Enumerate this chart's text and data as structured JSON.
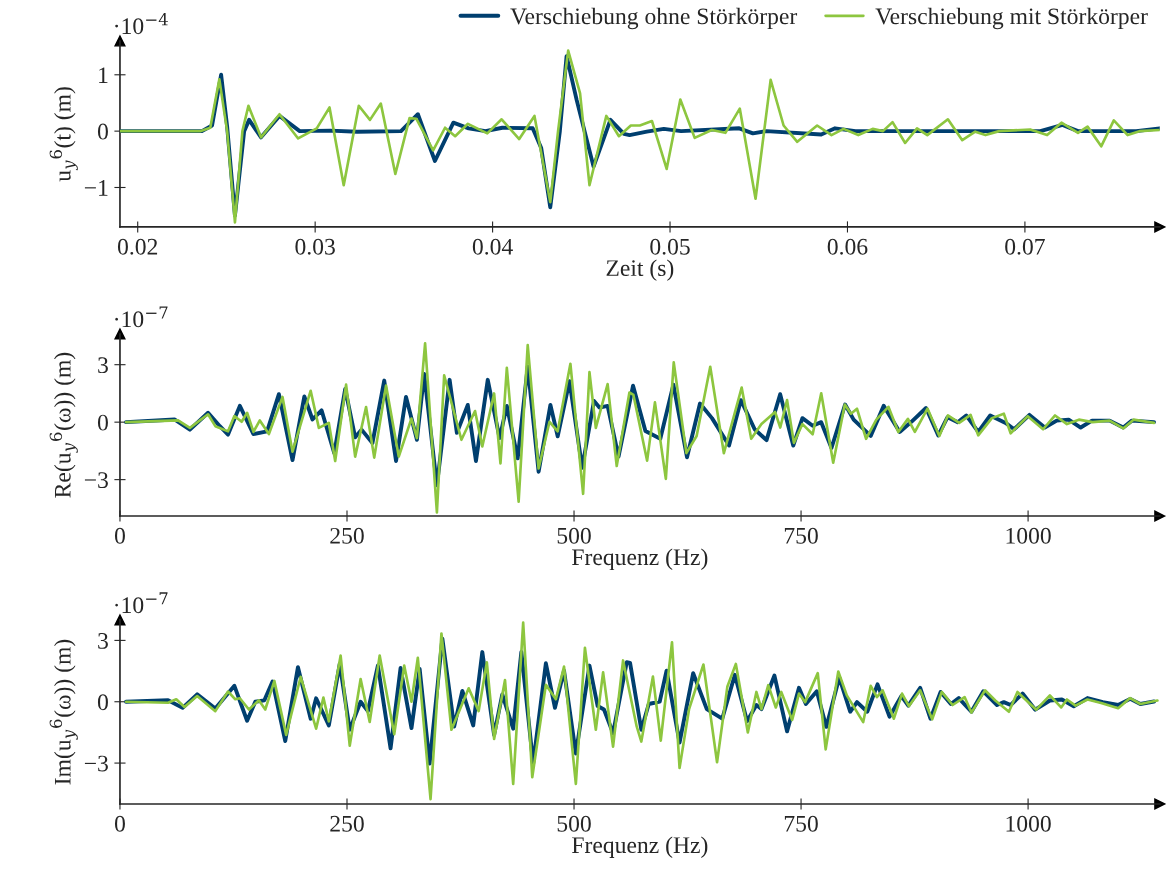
{
  "chart_data": [
    {
      "type": "line",
      "xlabel": "Zeit (s)",
      "ylabel": "u$_{y}$$^{6}$(t) (m)",
      "annotations": [
        "·10$^{−4}$"
      ],
      "legend": "top right",
      "xlim": [
        0.019,
        0.0776
      ],
      "xticks": [
        0.02,
        0.03,
        0.04,
        0.05,
        0.06,
        0.07
      ],
      "ylim": [
        -1.7,
        1.6
      ],
      "yticks": [
        -1,
        0,
        1
      ],
      "series": [
        {
          "name": "Verschiebung ohne Störkörper",
          "color": "#003f6f",
          "x": [
            0.019,
            0.02362,
            0.02419,
            0.0247,
            0.02504,
            0.02548,
            0.026,
            0.02628,
            0.02695,
            0.02799,
            0.02913,
            0.03085,
            0.03237,
            0.03484,
            0.03579,
            0.03675,
            0.03779,
            0.03865,
            0.0396,
            0.04055,
            0.04226,
            0.04274,
            0.04325,
            0.04379,
            0.04417,
            0.04474,
            0.04569,
            0.04664,
            0.0474,
            0.04772,
            0.04869,
            0.04965,
            0.05062,
            0.0539,
            0.05467,
            0.05544,
            0.05852,
            0.0593,
            0.06045,
            0.06508,
            0.07087,
            0.07212,
            0.07299,
            0.07627,
            0.0776
          ],
          "values": [
            0,
            0,
            0.1,
            1.0,
            0.08,
            -1.5,
            0,
            0.2,
            -0.11,
            0.27,
            0,
            0.01,
            -0.01,
            0,
            0.3,
            -0.53,
            0.15,
            0.05,
            0,
            0.06,
            0.05,
            -0.3,
            -1.35,
            0,
            1.33,
            0.55,
            -0.63,
            0.2,
            -0.05,
            -0.07,
            -0.01,
            0.04,
            0,
            0.05,
            -0.04,
            0,
            -0.06,
            0.05,
            0,
            0,
            0,
            0.11,
            0,
            0,
            0.05
          ]
        },
        {
          "name": "Verschiebung mit Störkörper",
          "color": "#8dc63f",
          "x": [
            0.019,
            0.02352,
            0.02409,
            0.0246,
            0.02504,
            0.02548,
            0.0259,
            0.02624,
            0.02695,
            0.02799,
            0.02904,
            0.03009,
            0.03081,
            0.03161,
            0.03246,
            0.03309,
            0.0337,
            0.03452,
            0.03532,
            0.0357,
            0.03665,
            0.03732,
            0.03789,
            0.03861,
            0.0397,
            0.04051,
            0.0415,
            0.04236,
            0.04325,
            0.04369,
            0.04426,
            0.04493,
            0.04546,
            0.04641,
            0.04712,
            0.04779,
            0.0483,
            0.04898,
            0.04981,
            0.05058,
            0.05139,
            0.05235,
            0.05312,
            0.05393,
            0.05482,
            0.05567,
            0.0564,
            0.05717,
            0.05829,
            0.0591,
            0.05978,
            0.06061,
            0.06142,
            0.062,
            0.06254,
            0.06325,
            0.06392,
            0.0645,
            0.06566,
            0.06647,
            0.0672,
            0.06778,
            0.06855,
            0.07029,
            0.07125,
            0.07206,
            0.07299,
            0.07353,
            0.0743,
            0.07501,
            0.07579,
            0.07646,
            0.0776
          ],
          "values": [
            0,
            0,
            0.06,
            0.92,
            0,
            -1.62,
            0,
            0.45,
            -0.11,
            0.3,
            -0.13,
            0.05,
            0.42,
            -0.96,
            0.45,
            0.2,
            0.49,
            -0.76,
            0.23,
            0.22,
            -0.34,
            0.06,
            -0.09,
            0.13,
            -0.04,
            0.21,
            -0.14,
            0.27,
            -1.26,
            0,
            1.43,
            0.67,
            -0.96,
            0.27,
            -0.09,
            0.1,
            0.1,
            0.18,
            -0.67,
            0.56,
            -0.12,
            0.02,
            -0.03,
            0.4,
            -1.2,
            0.91,
            0.1,
            -0.19,
            0.1,
            -0.07,
            0.04,
            -0.07,
            0.04,
            0,
            0.16,
            -0.21,
            0.05,
            -0.07,
            0.21,
            -0.16,
            -0.01,
            -0.07,
            0,
            0.03,
            -0.07,
            0.15,
            -0.03,
            0.08,
            -0.27,
            0.19,
            -0.07,
            0,
            0.02
          ]
        }
      ]
    },
    {
      "type": "line",
      "xlabel": "Frequenz (Hz)",
      "ylabel": "Re(u$_{y}$$^{6}$(ω)) (m)",
      "annotations": [
        "·10$^{−7}$"
      ],
      "xlim": [
        0,
        1145
      ],
      "xticks": [
        0,
        250,
        500,
        750,
        1000
      ],
      "ylim": [
        -4.9,
        4.6
      ],
      "yticks": [
        -3,
        0,
        3
      ],
      "series": [
        {
          "color": "#003f6f",
          "x": [
            6.7,
            60,
            77,
            97,
            110,
            119,
            132,
            147,
            162,
            175,
            190,
            203,
            212,
            222,
            236,
            248,
            259,
            266,
            278,
            291,
            304,
            315,
            327,
            335,
            349,
            363,
            371,
            383,
            392,
            405,
            418,
            426,
            438,
            449,
            461,
            474,
            482,
            495,
            509,
            522,
            528,
            537,
            549,
            565,
            578.6,
            595,
            609.4,
            624.4,
            638.7,
            651.9,
            670.7,
            683.8,
            698.9,
            712,
            727,
            741.4,
            751.5,
            762.8,
            772.2,
            783.5,
            798.5,
            807.9,
            826.7,
            841,
            858.6,
            871.8,
            887.6,
            901.1,
            911.3,
            922.5,
            931.9,
            945.1,
            958.3,
            975.2,
            984.6,
            1001.5,
            1018.4,
            1031.5,
            1044.7,
            1057.9,
            1070.4,
            1089.8,
            1104.8,
            1114.3,
            1138.7
          ],
          "values": [
            0,
            0.14,
            -0.39,
            0.49,
            -0.21,
            -0.65,
            0.85,
            -0.62,
            -0.48,
            1.46,
            -1.98,
            1.34,
            0.14,
            0.62,
            -1.62,
            1.73,
            -0.79,
            -0.39,
            -1.09,
            2.17,
            -2.03,
            1.32,
            -0.92,
            2.52,
            -3.3,
            2.21,
            -0.56,
            0.9,
            -2.03,
            2.21,
            -0.83,
            0.85,
            -1.89,
            2.91,
            -2.59,
            0.9,
            -0.74,
            2.14,
            -2.38,
            1.11,
            0.76,
            0.85,
            -1.8,
            1.9,
            -0.46,
            -0.87,
            1.96,
            -1.83,
            0.97,
            0.21,
            -1.22,
            1.15,
            -0.37,
            -0.94,
            1.46,
            -1.22,
            0.21,
            -0.19,
            0,
            -1.35,
            0.92,
            0.13,
            -0.72,
            0.85,
            -0.51,
            0.03,
            0.74,
            -0.69,
            0.26,
            0,
            0.35,
            -0.51,
            0.35,
            -0.04,
            -0.37,
            0.38,
            -0.28,
            0.08,
            0.13,
            -0.28,
            0.08,
            0.08,
            -0.28,
            0.08,
            0
          ]
        },
        {
          "color": "#8dc63f",
          "x": [
            6.7,
            64,
            77,
            97,
            105,
            119,
            126,
            134,
            140,
            147,
            154,
            164,
            179,
            190,
            210,
            219,
            230,
            237,
            249,
            259,
            271,
            280,
            293,
            307,
            321,
            327,
            336,
            349,
            357,
            376,
            391,
            399,
            412,
            419,
            426,
            439,
            449,
            461,
            473,
            482,
            496,
            510,
            517,
            524,
            537,
            547,
            561,
            565.4,
            580.5,
            589.1,
            601.1,
            609.8,
            623.7,
            635,
            650,
            665,
            684.6,
            695.1,
            706.4,
            721.4,
            727.1,
            734.6,
            742.1,
            751.5,
            762.8,
            772.2,
            785.4,
            798.2,
            804.9,
            811.6,
            821.6,
            832.9,
            846.2,
            857.1,
            867.7,
            875.3,
            889.2,
            902.3,
            911.7,
            924.1,
            936.7,
            945.1,
            960.1,
            973.3,
            980.8,
            999.6,
            1016.5,
            1029.7,
            1042.8,
            1056,
            1071,
            1089.8,
            1104.8,
            1116.1,
            1138.7
          ],
          "values": [
            0,
            0.09,
            -0.3,
            0.41,
            -0.21,
            -0.48,
            0.32,
            0.02,
            0.49,
            -0.51,
            0.09,
            -0.62,
            1.32,
            -1.54,
            1.64,
            -0.3,
            -0.04,
            -2.03,
            1.96,
            -1.8,
            0.79,
            -1.85,
            1.91,
            -1.8,
            0.19,
            -0.83,
            4.11,
            -4.71,
            2.44,
            -0.92,
            0.58,
            -1.27,
            1.5,
            -2.15,
            2.84,
            -4.15,
            4.02,
            -2.42,
            0.02,
            -0.48,
            3.05,
            -3.74,
            2.61,
            -0.3,
            1.99,
            -2.29,
            1.55,
            1.42,
            -2.01,
            1.03,
            -2.96,
            3.12,
            -1.62,
            -0.72,
            2.89,
            -1.62,
            1.81,
            -0.87,
            -0.1,
            0.53,
            -0.28,
            1.15,
            -1.08,
            -0.1,
            -0.63,
            1.51,
            -2.12,
            0.92,
            0.44,
            0.7,
            -0.87,
            0.13,
            0.8,
            -0.51,
            0.17,
            -0.51,
            0.71,
            -0.72,
            0.35,
            -0.04,
            0.38,
            -0.69,
            0.21,
            0.44,
            -0.58,
            0.31,
            -0.37,
            0.35,
            -0.1,
            0.13,
            0,
            0.08,
            -0.33,
            0.13,
            -0.04
          ]
        }
      ]
    },
    {
      "type": "line",
      "xlabel": "Frequenz (Hz)",
      "ylabel": "Im(u$_{y}$$^{6}$(ω)) (m)",
      "annotations": [
        "·10$^{−7}$"
      ],
      "xlim": [
        0,
        1145
      ],
      "xticks": [
        0,
        250,
        500,
        750,
        1000
      ],
      "ylim": [
        -5.0,
        4.0
      ],
      "yticks": [
        -3,
        0,
        3
      ],
      "series": [
        {
          "color": "#003f6f",
          "x": [
            6.7,
            53,
            69,
            85,
            105,
            126,
            140,
            149,
            159,
            168,
            182,
            196,
            210,
            216,
            230,
            242,
            253,
            265,
            273,
            284,
            298,
            309,
            321,
            330,
            341,
            355,
            368,
            377,
            389,
            399,
            412,
            421,
            433,
            442,
            455,
            469,
            479,
            489,
            502,
            517,
            526,
            533,
            543,
            558,
            561.7,
            574.1,
            582.3,
            594.4,
            601.9,
            616.2,
            631.2,
            646.2,
            663.2,
            677.1,
            690.6,
            700.8,
            706.4,
            720.7,
            734.6,
            747.7,
            755.3,
            767.3,
            777.8,
            792.1,
            804.1,
            811.6,
            822.9,
            834.2,
            847.4,
            860.5,
            868.1,
            881.2,
            892.5,
            903.7,
            915,
            923.7,
            937.6,
            950.7,
            965.8,
            973.3,
            980.8,
            993.9,
            1007.9,
            1024,
            1037.2,
            1050.3,
            1065.4,
            1082.3,
            1099.2,
            1112.4,
            1123.6,
            1138.7
          ],
          "values": [
            0,
            0.07,
            -0.3,
            0.36,
            -0.33,
            0.78,
            -0.93,
            0,
            0.07,
            0.99,
            -1.92,
            1.69,
            -0.83,
            0.17,
            -1.16,
            1.85,
            -1.37,
            0,
            -0.46,
            1.77,
            -2.28,
            1.65,
            -1.29,
            1.6,
            -3.02,
            3.09,
            -1.21,
            0.53,
            -1.16,
            2.43,
            -1.62,
            0.36,
            -1.32,
            2.43,
            -3.02,
            1.88,
            -0.3,
            1.52,
            -2.53,
            1.77,
            -0.21,
            -0.38,
            -1.54,
            1.93,
            1.9,
            -1.37,
            -0.11,
            0.01,
            1.52,
            -2.0,
            1.4,
            -0.36,
            -0.83,
            1.32,
            -0.95,
            -0.16,
            -0.36,
            1.28,
            -1.45,
            0.68,
            -0.11,
            0.51,
            -1.23,
            1.18,
            -0.49,
            -0.02,
            -0.49,
            0.85,
            -0.73,
            0.28,
            -0.19,
            0.68,
            -0.83,
            0.48,
            -0.11,
            0.18,
            -0.49,
            0.51,
            -0.16,
            -0.02,
            -0.16,
            0.4,
            -0.39,
            0.06,
            0.11,
            -0.22,
            0.18,
            -0.02,
            -0.16,
            0.14,
            -0.11,
            0.01
          ]
        },
        {
          "color": "#8dc63f",
          "x": [
            6.7,
            53,
            62,
            71,
            85,
            105,
            119,
            127,
            132,
            142,
            153,
            160,
            170,
            183,
            199,
            216,
            224,
            230,
            243,
            253,
            265,
            275,
            286,
            302,
            313,
            321,
            328,
            342,
            354,
            365,
            384,
            395,
            404,
            412,
            424,
            433,
            444,
            454,
            469,
            480,
            489,
            502,
            512,
            524,
            532,
            543,
            554,
            569,
            574.1,
            586.9,
            595.5,
            607.9,
            616.2,
            626.7,
            642.5,
            657.5,
            668.8,
            678.2,
            691.4,
            700.8,
            706.4,
            713.9,
            722.2,
            728.2,
            740.2,
            747.7,
            754.5,
            768.4,
            777.1,
            791,
            800.4,
            818.4,
            826.7,
            833.5,
            839.8,
            852.2,
            861.2,
            868.7,
            881.2,
            894.4,
            904.9,
            916.9,
            930.1,
            937.6,
            952.6,
            963.9,
            978.9,
            988.3,
            1009,
            1024,
            1036.4,
            1042.8,
            1052.2,
            1065.4,
            1080.4,
            1099.2,
            1112.4,
            1123.6,
            1142.4
          ],
          "values": [
            0,
            -0.05,
            0.12,
            -0.26,
            0.28,
            -0.46,
            0.5,
            0.12,
            0.17,
            -0.38,
            0.07,
            -0.38,
            1.02,
            -1.62,
            1.22,
            -1.32,
            0.2,
            -0.96,
            2.26,
            -2.15,
            1.11,
            -0.99,
            2.26,
            -1.59,
            1.77,
            0,
            2.15,
            -4.76,
            3.34,
            -1.37,
            0.66,
            -0.46,
            1.93,
            -1.82,
            1.06,
            -4.02,
            3.87,
            -3.69,
            0.83,
            0.12,
            1.72,
            -4.02,
            2.64,
            -1.37,
            1.44,
            -2.2,
            2.02,
            -1.21,
            -1.95,
            1.23,
            -1.9,
            2.91,
            -3.24,
            -0.36,
            1.82,
            -2.96,
            0.73,
            1.85,
            -1.5,
            0.48,
            -0.36,
            0.81,
            -0.28,
            0.48,
            -0.89,
            0.4,
            -0.02,
            1.4,
            -2.33,
            1.48,
            0.31,
            -1.0,
            0.78,
            0.23,
            0.56,
            -0.83,
            0.4,
            -0.22,
            0.56,
            -0.86,
            0.48,
            -0.16,
            0.23,
            -0.53,
            0.56,
            0.06,
            -0.49,
            0.48,
            -0.39,
            0.31,
            -0.28,
            0.11,
            -0.19,
            0.11,
            -0.06,
            -0.32,
            0.18,
            -0.11,
            0.06
          ]
        }
      ]
    }
  ]
}
